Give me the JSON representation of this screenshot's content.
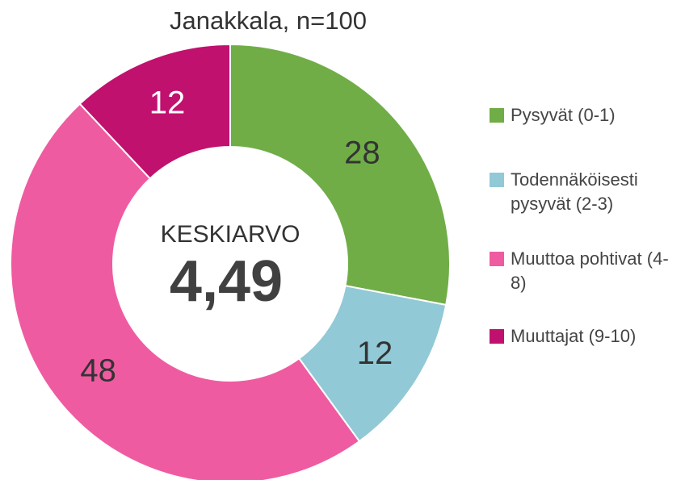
{
  "chart_data": {
    "type": "donut",
    "title": "Janakkala, n=100",
    "center_label": "KESKIARVO",
    "center_value": "4,49",
    "categories": [
      "Pysyvät (0-1)",
      "Todennäköisesti pysyvät (2-3)",
      "Muuttoa pohtivat (4-8)",
      "Muuttajat (9-10)"
    ],
    "values": [
      28,
      12,
      48,
      12
    ],
    "colors": [
      "#70ad47",
      "#92c9d6",
      "#ef5ba1",
      "#c0116e"
    ],
    "label_colors": [
      "#333333",
      "#333333",
      "#333333",
      "#ffffff"
    ],
    "legend": "right"
  }
}
